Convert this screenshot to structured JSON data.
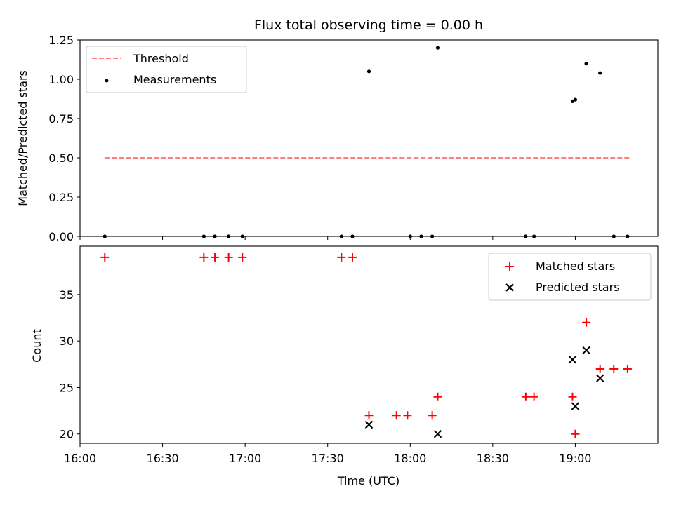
{
  "chart_data": [
    {
      "type": "scatter",
      "title": "Flux total observing time = 0.00 h",
      "ylabel": "Matched/Predicted stars",
      "xlabel": "",
      "xlim": [
        0,
        210
      ],
      "ylim": [
        0,
        1.25
      ],
      "yticks": [
        0.0,
        0.25,
        0.5,
        0.75,
        1.0,
        1.25
      ],
      "ytick_labels": [
        "0.00",
        "0.25",
        "0.50",
        "0.75",
        "1.00",
        "1.25"
      ],
      "grid": false,
      "legend_position": "top-left",
      "series": [
        {
          "name": "Threshold",
          "kind": "dashed-line",
          "color": "#ff7f7f",
          "x": [
            9,
            200
          ],
          "y": [
            0.5,
            0.5
          ]
        },
        {
          "name": "Measurements",
          "kind": "scatter-dot",
          "color": "#000000",
          "x": [
            9,
            45,
            49,
            54,
            59,
            95,
            99,
            105,
            120,
            124,
            128,
            130,
            162,
            165,
            179,
            180,
            184,
            189,
            194,
            199
          ],
          "y": [
            0,
            0,
            0,
            0,
            0,
            0,
            0,
            1.05,
            0,
            0,
            0,
            1.2,
            0,
            0,
            0.86,
            0.87,
            1.1,
            1.04,
            0,
            0
          ]
        }
      ]
    },
    {
      "type": "scatter",
      "title": "",
      "xlabel": "Time (UTC)",
      "ylabel": "Count",
      "xlim": [
        0,
        210
      ],
      "ylim": [
        19,
        40.2
      ],
      "xticks": [
        0,
        30,
        60,
        90,
        120,
        150,
        180
      ],
      "xtick_labels": [
        "16:00",
        "16:30",
        "17:00",
        "17:30",
        "18:00",
        "18:30",
        "19:00"
      ],
      "yticks": [
        20,
        25,
        30,
        35
      ],
      "ytick_labels": [
        "20",
        "25",
        "30",
        "35"
      ],
      "grid": false,
      "legend_position": "top-right",
      "series": [
        {
          "name": "Matched stars",
          "marker": "plus",
          "color": "#ff0000",
          "x": [
            9,
            45,
            49,
            54,
            59,
            95,
            99,
            105,
            115,
            119,
            128,
            130,
            162,
            165,
            179,
            180,
            184,
            189,
            194,
            199
          ],
          "y": [
            39,
            39,
            39,
            39,
            39,
            39,
            39,
            22,
            22,
            22,
            22,
            24,
            24,
            24,
            24,
            20,
            32,
            27,
            27,
            27
          ]
        },
        {
          "name": "Predicted stars",
          "marker": "x",
          "color": "#000000",
          "x": [
            105,
            130,
            179,
            180,
            184,
            189
          ],
          "y": [
            21,
            20,
            28,
            23,
            29,
            26
          ]
        }
      ]
    }
  ]
}
